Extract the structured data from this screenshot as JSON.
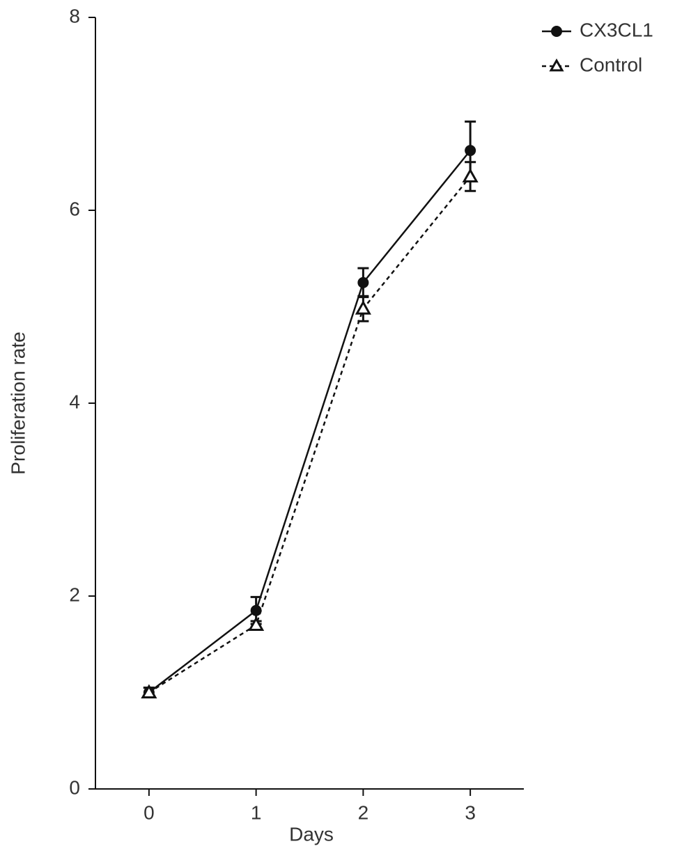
{
  "chart_data": {
    "type": "line",
    "x_label": "Days",
    "y_label": "Proliferation rate",
    "x": [
      0,
      1,
      2,
      3
    ],
    "xlim": [
      -0.5,
      3.5
    ],
    "xticks": [
      0,
      1,
      2,
      3
    ],
    "ylim": [
      0,
      8
    ],
    "yticks": [
      0,
      2,
      4,
      6,
      8
    ],
    "legend": "top-right",
    "series": [
      {
        "name": "CX3CL1",
        "color": "#111111",
        "dash": false,
        "marker": "circle",
        "values": [
          1.0,
          1.85,
          5.25,
          6.62
        ],
        "errors": [
          0.05,
          0.14,
          0.15,
          0.3
        ]
      },
      {
        "name": "Control",
        "color": "#111111",
        "dash": true,
        "marker": "triangle",
        "values": [
          1.0,
          1.7,
          4.98,
          6.35
        ],
        "errors": [
          0.05,
          0.04,
          0.13,
          0.15
        ]
      }
    ]
  }
}
